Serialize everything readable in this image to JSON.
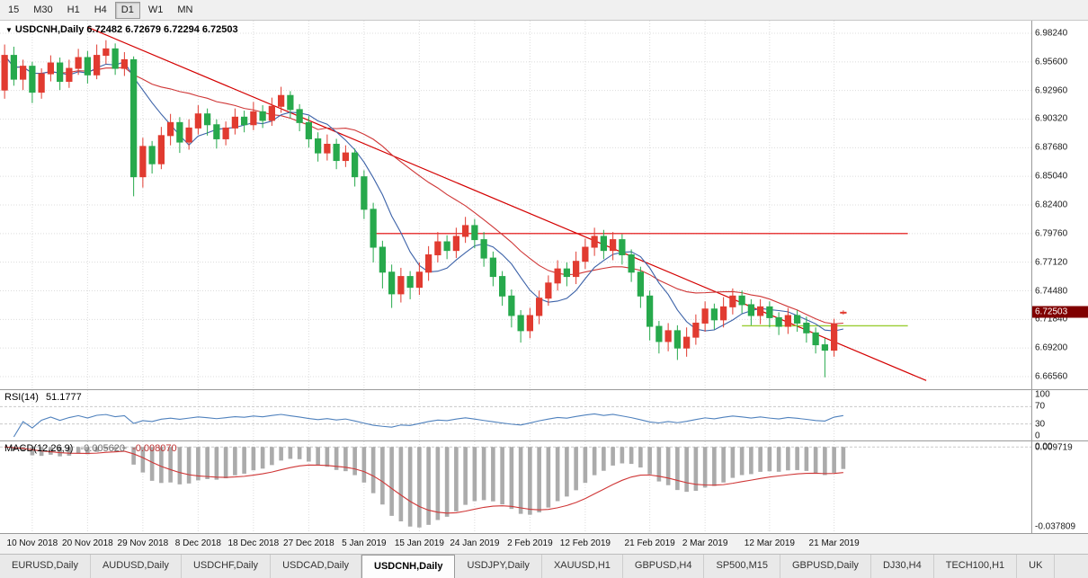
{
  "toolbar": {
    "buttons": [
      "15",
      "M30",
      "H1",
      "H4",
      "D1",
      "W1",
      "MN"
    ],
    "active": "D1"
  },
  "tab_bar": {
    "tabs": [
      "EURUSD,Daily",
      "AUDUSD,Daily",
      "USDCHF,Daily",
      "USDCAD,Daily",
      "USDCNH,Daily",
      "USDJPY,Daily",
      "XAUUSD,H1",
      "GBPUSD,H4",
      "SP500,M15",
      "GBPUSD,Daily",
      "DJ30,H4",
      "TECH100,H1",
      "UK"
    ],
    "active_index": 4
  },
  "chart_data": {
    "type": "candlestick",
    "symbol_timeframe": "USDCNH,Daily",
    "ohlc_display": {
      "open": "6.72482",
      "high": "6.72679",
      "low": "6.72294",
      "close": "6.72503"
    },
    "total_slots": 112,
    "price_axis": {
      "min": 6.654,
      "max": 6.994,
      "current": "6.72503",
      "labels": [
        "6.98240",
        "6.95600",
        "6.92960",
        "6.90320",
        "6.87680",
        "6.85040",
        "6.82400",
        "6.79760",
        "6.77120",
        "6.74480",
        "6.71840",
        "6.69200",
        "6.66560"
      ]
    },
    "time_axis": {
      "labels": [
        {
          "text": "10 Nov 2018",
          "slot": 3
        },
        {
          "text": "20 Nov 2018",
          "slot": 9
        },
        {
          "text": "29 Nov 2018",
          "slot": 15
        },
        {
          "text": "8 Dec 2018",
          "slot": 21
        },
        {
          "text": "18 Dec 2018",
          "slot": 27
        },
        {
          "text": "27 Dec 2018",
          "slot": 33
        },
        {
          "text": "5 Jan 2019",
          "slot": 39
        },
        {
          "text": "15 Jan 2019",
          "slot": 45
        },
        {
          "text": "24 Jan 2019",
          "slot": 51
        },
        {
          "text": "2 Feb 2019",
          "slot": 57
        },
        {
          "text": "12 Feb 2019",
          "slot": 63
        },
        {
          "text": "21 Feb 2019",
          "slot": 70
        },
        {
          "text": "2 Mar 2019",
          "slot": 76
        },
        {
          "text": "12 Mar 2019",
          "slot": 83
        },
        {
          "text": "21 Mar 2019",
          "slot": 90
        }
      ]
    },
    "candles": [
      [
        6.93,
        6.972,
        6.922,
        6.962
      ],
      [
        6.962,
        6.97,
        6.934,
        6.94
      ],
      [
        6.94,
        6.958,
        6.93,
        6.952
      ],
      [
        6.952,
        6.956,
        6.918,
        6.928
      ],
      [
        6.928,
        6.95,
        6.922,
        6.945
      ],
      [
        6.945,
        6.962,
        6.938,
        6.955
      ],
      [
        6.955,
        6.96,
        6.93,
        6.938
      ],
      [
        6.938,
        6.958,
        6.932,
        6.95
      ],
      [
        6.95,
        6.968,
        6.944,
        6.96
      ],
      [
        6.96,
        6.966,
        6.936,
        6.944
      ],
      [
        6.944,
        6.972,
        6.94,
        6.962
      ],
      [
        6.962,
        6.976,
        6.954,
        6.968
      ],
      [
        6.968,
        6.973,
        6.944,
        6.95
      ],
      [
        6.95,
        6.965,
        6.943,
        6.958
      ],
      [
        6.958,
        6.961,
        6.832,
        6.85
      ],
      [
        6.85,
        6.886,
        6.84,
        6.878
      ],
      [
        6.878,
        6.883,
        6.853,
        6.862
      ],
      [
        6.862,
        6.896,
        6.857,
        6.888
      ],
      [
        6.888,
        6.908,
        6.879,
        6.9
      ],
      [
        6.9,
        6.905,
        6.872,
        6.882
      ],
      [
        6.882,
        6.903,
        6.875,
        6.895
      ],
      [
        6.895,
        6.916,
        6.889,
        6.908
      ],
      [
        6.908,
        6.913,
        6.888,
        6.898
      ],
      [
        6.898,
        6.903,
        6.876,
        6.885
      ],
      [
        6.885,
        6.901,
        6.879,
        6.895
      ],
      [
        6.895,
        6.913,
        6.889,
        6.905
      ],
      [
        6.905,
        6.911,
        6.891,
        6.898
      ],
      [
        6.898,
        6.919,
        6.893,
        6.91
      ],
      [
        6.91,
        6.916,
        6.895,
        6.902
      ],
      [
        6.902,
        6.923,
        6.897,
        6.915
      ],
      [
        6.915,
        6.933,
        6.909,
        6.925
      ],
      [
        6.925,
        6.929,
        6.904,
        6.912
      ],
      [
        6.912,
        6.917,
        6.892,
        6.9
      ],
      [
        6.9,
        6.906,
        6.877,
        6.885
      ],
      [
        6.885,
        6.891,
        6.864,
        6.872
      ],
      [
        6.872,
        6.889,
        6.865,
        6.88
      ],
      [
        6.88,
        6.885,
        6.857,
        6.865
      ],
      [
        6.865,
        6.879,
        6.859,
        6.872
      ],
      [
        6.872,
        6.876,
        6.841,
        6.85
      ],
      [
        6.85,
        6.856,
        6.811,
        6.82
      ],
      [
        6.82,
        6.826,
        6.771,
        6.785
      ],
      [
        6.785,
        6.791,
        6.747,
        6.762
      ],
      [
        6.762,
        6.769,
        6.729,
        6.742
      ],
      [
        6.742,
        6.766,
        6.734,
        6.758
      ],
      [
        6.758,
        6.763,
        6.737,
        6.748
      ],
      [
        6.748,
        6.771,
        6.741,
        6.762
      ],
      [
        6.762,
        6.786,
        6.754,
        6.778
      ],
      [
        6.778,
        6.799,
        6.771,
        6.79
      ],
      [
        6.79,
        6.796,
        6.774,
        6.782
      ],
      [
        6.782,
        6.803,
        6.775,
        6.795
      ],
      [
        6.795,
        6.813,
        6.789,
        6.805
      ],
      [
        6.805,
        6.811,
        6.784,
        6.792
      ],
      [
        6.792,
        6.799,
        6.767,
        6.775
      ],
      [
        6.775,
        6.781,
        6.749,
        6.758
      ],
      [
        6.758,
        6.763,
        6.731,
        6.74
      ],
      [
        6.74,
        6.746,
        6.711,
        6.722
      ],
      [
        6.722,
        6.727,
        6.697,
        6.708
      ],
      [
        6.708,
        6.729,
        6.701,
        6.722
      ],
      [
        6.722,
        6.745,
        6.714,
        6.738
      ],
      [
        6.738,
        6.759,
        6.731,
        6.752
      ],
      [
        6.752,
        6.773,
        6.745,
        6.765
      ],
      [
        6.765,
        6.771,
        6.749,
        6.758
      ],
      [
        6.758,
        6.781,
        6.751,
        6.772
      ],
      [
        6.772,
        6.793,
        6.765,
        6.785
      ],
      [
        6.785,
        6.803,
        6.777,
        6.795
      ],
      [
        6.795,
        6.801,
        6.774,
        6.782
      ],
      [
        6.782,
        6.799,
        6.773,
        6.792
      ],
      [
        6.792,
        6.797,
        6.769,
        6.778
      ],
      [
        6.778,
        6.783,
        6.753,
        6.762
      ],
      [
        6.762,
        6.767,
        6.729,
        6.74
      ],
      [
        6.74,
        6.745,
        6.699,
        6.712
      ],
      [
        6.712,
        6.717,
        6.687,
        6.698
      ],
      [
        6.698,
        6.715,
        6.689,
        6.708
      ],
      [
        6.708,
        6.713,
        6.681,
        6.692
      ],
      [
        6.692,
        6.711,
        6.684,
        6.702
      ],
      [
        6.702,
        6.723,
        6.695,
        6.715
      ],
      [
        6.715,
        6.735,
        6.707,
        6.728
      ],
      [
        6.728,
        6.733,
        6.709,
        6.718
      ],
      [
        6.718,
        6.739,
        6.711,
        6.73
      ],
      [
        6.73,
        6.747,
        6.723,
        6.74
      ],
      [
        6.74,
        6.745,
        6.724,
        6.732
      ],
      [
        6.732,
        6.737,
        6.713,
        6.722
      ],
      [
        6.722,
        6.737,
        6.714,
        6.73
      ],
      [
        6.73,
        6.735,
        6.711,
        6.72
      ],
      [
        6.72,
        6.725,
        6.704,
        6.712
      ],
      [
        6.712,
        6.729,
        6.705,
        6.722
      ],
      [
        6.722,
        6.727,
        6.707,
        6.715
      ],
      [
        6.715,
        6.721,
        6.697,
        6.706
      ],
      [
        6.706,
        6.711,
        6.687,
        6.695
      ],
      [
        6.695,
        6.701,
        6.665,
        6.69
      ],
      [
        6.69,
        6.719,
        6.684,
        6.714
      ],
      [
        6.7248,
        6.7268,
        6.7229,
        6.72503
      ]
    ],
    "overlays": {
      "ma_fast": {
        "period": 7
      },
      "ma_slow": {
        "period": 21
      },
      "trendline": {
        "from": {
          "slot": 9,
          "price": 6.988
        },
        "to": {
          "slot": 100,
          "price": 6.662
        }
      },
      "resistance": {
        "price": 6.7976,
        "from_slot": 40,
        "to_slot": 98
      },
      "support": {
        "price": 6.7125,
        "from_slot": 80,
        "to_slot": 98
      }
    },
    "rsi": {
      "label": "RSI(14)",
      "value": "51.1777",
      "period": 14,
      "levels": [
        100,
        70,
        30,
        0
      ]
    },
    "macd": {
      "label": "MACD(12,26,9)",
      "value_main": "-0.005620",
      "value_signal": "-0.008070",
      "fast": 12,
      "slow": 26,
      "signal_period": 9,
      "axis_labels": [
        "0.009719",
        "0.00",
        "-0.037809"
      ]
    },
    "colors": {
      "bull": "#e13b30",
      "bear": "#27a94c",
      "grid": "#dcdcdc",
      "ma_fast": "#3c62a8",
      "ma_slow": "#cf3636",
      "trend": "#d40000",
      "resistance": "#e00000",
      "support": "#9acd32",
      "rsi": "#4f81bd",
      "macd_hist": "#ababab",
      "macd_signal": "#cf3636",
      "badge_bg": "#800000"
    }
  }
}
